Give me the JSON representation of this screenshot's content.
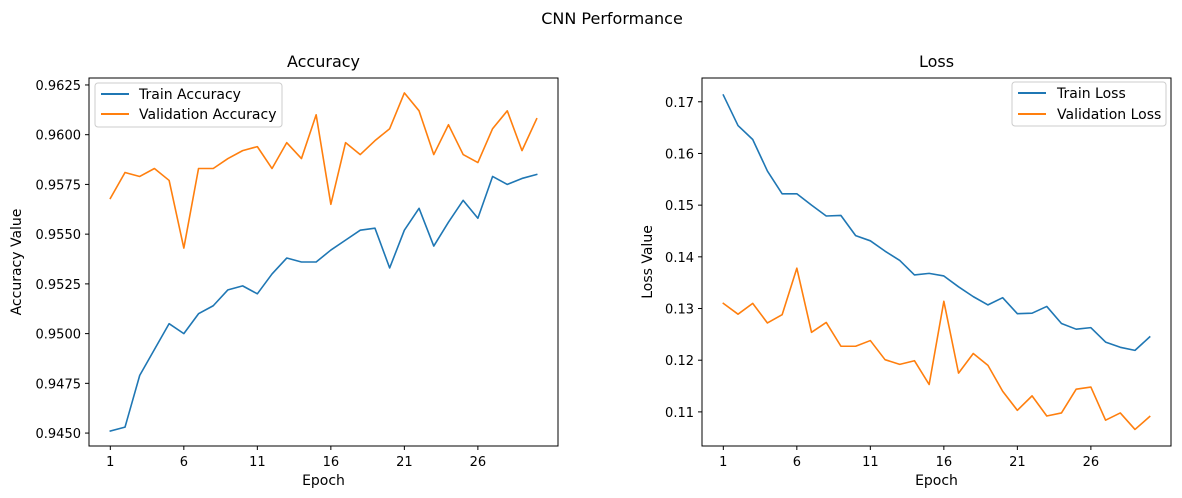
{
  "suptitle": "CNN Performance",
  "chart_data": [
    {
      "type": "line",
      "title": "Accuracy",
      "xlabel": "Epoch",
      "ylabel": "Accuracy Value",
      "x": [
        1,
        2,
        3,
        4,
        5,
        6,
        7,
        8,
        9,
        10,
        11,
        12,
        13,
        14,
        15,
        16,
        17,
        18,
        19,
        20,
        21,
        22,
        23,
        24,
        25,
        26,
        27,
        28,
        29,
        30
      ],
      "xticks": [
        1,
        6,
        11,
        16,
        21,
        26
      ],
      "xticklabels": [
        "1",
        "6",
        "11",
        "16",
        "21",
        "26"
      ],
      "xlim": [
        -0.45,
        31.45
      ],
      "ylim": [
        0.94435,
        0.96285
      ],
      "yticks": [
        0.945,
        0.9475,
        0.95,
        0.9525,
        0.955,
        0.9575,
        0.96,
        0.9625
      ],
      "yticklabels": [
        "0.9450",
        "0.9475",
        "0.9500",
        "0.9525",
        "0.9550",
        "0.9575",
        "0.9600",
        "0.9625"
      ],
      "grid": false,
      "legend_loc": "upper left",
      "series": [
        {
          "name": "Train Accuracy",
          "color": "#1f77b4",
          "values": [
            0.9451,
            0.9453,
            0.9479,
            0.9492,
            0.9505,
            0.95,
            0.951,
            0.9514,
            0.9522,
            0.9524,
            0.952,
            0.953,
            0.9538,
            0.9536,
            0.9536,
            0.9542,
            0.9547,
            0.9552,
            0.9553,
            0.9533,
            0.9552,
            0.9563,
            0.9544,
            0.9556,
            0.9567,
            0.9558,
            0.9579,
            0.9575,
            0.9578,
            0.958
          ]
        },
        {
          "name": "Validation Accuracy",
          "color": "#ff7f0e",
          "values": [
            0.9568,
            0.9581,
            0.9579,
            0.9583,
            0.9577,
            0.9543,
            0.9583,
            0.9583,
            0.9588,
            0.9592,
            0.9594,
            0.9583,
            0.9596,
            0.9588,
            0.961,
            0.9565,
            0.9596,
            0.959,
            0.9597,
            0.9603,
            0.9621,
            0.9612,
            0.959,
            0.9605,
            0.959,
            0.9586,
            0.9603,
            0.9612,
            0.9592,
            0.9608
          ]
        }
      ]
    },
    {
      "type": "line",
      "title": "Loss",
      "xlabel": "Epoch",
      "ylabel": "Loss Value",
      "x": [
        1,
        2,
        3,
        4,
        5,
        6,
        7,
        8,
        9,
        10,
        11,
        12,
        13,
        14,
        15,
        16,
        17,
        18,
        19,
        20,
        21,
        22,
        23,
        24,
        25,
        26,
        27,
        28,
        29,
        30
      ],
      "xticks": [
        1,
        6,
        11,
        16,
        21,
        26
      ],
      "xticklabels": [
        "1",
        "6",
        "11",
        "16",
        "21",
        "26"
      ],
      "xlim": [
        -0.45,
        31.45
      ],
      "ylim": [
        0.1034,
        0.1746
      ],
      "yticks": [
        0.11,
        0.12,
        0.13,
        0.14,
        0.15,
        0.16,
        0.17
      ],
      "yticklabels": [
        "0.11",
        "0.12",
        "0.13",
        "0.14",
        "0.15",
        "0.16",
        "0.17"
      ],
      "grid": false,
      "legend_loc": "upper right",
      "series": [
        {
          "name": "Train Loss",
          "color": "#1f77b4",
          "values": [
            0.1713,
            0.1654,
            0.1627,
            0.1566,
            0.1522,
            0.1522,
            0.15,
            0.1479,
            0.148,
            0.1441,
            0.1431,
            0.1411,
            0.1393,
            0.1365,
            0.1368,
            0.1363,
            0.1342,
            0.1323,
            0.1307,
            0.1321,
            0.129,
            0.1291,
            0.1304,
            0.1271,
            0.126,
            0.1263,
            0.1235,
            0.1225,
            0.1219,
            0.1245
          ]
        },
        {
          "name": "Validation Loss",
          "color": "#ff7f0e",
          "values": [
            0.131,
            0.1289,
            0.131,
            0.1272,
            0.1288,
            0.1378,
            0.1254,
            0.1273,
            0.1227,
            0.1227,
            0.1238,
            0.1201,
            0.1192,
            0.1199,
            0.1153,
            0.1314,
            0.1175,
            0.1213,
            0.119,
            0.114,
            0.1103,
            0.1131,
            0.1092,
            0.1098,
            0.1144,
            0.1148,
            0.1084,
            0.1098,
            0.1066,
            0.1091
          ]
        }
      ]
    }
  ]
}
